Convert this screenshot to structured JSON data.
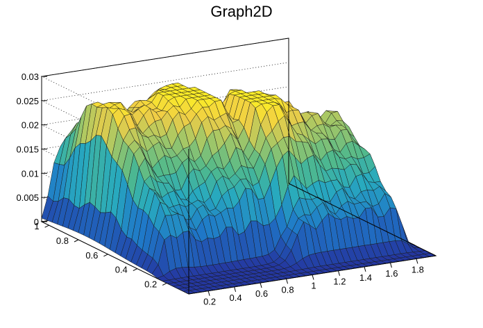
{
  "chart_data": {
    "type": "surface",
    "title": "Graph2D",
    "xlabel": "",
    "ylabel": "",
    "zlabel": "",
    "x_ticks": [
      "0.2",
      "0.4",
      "0.6",
      "0.8",
      "1",
      "1.2",
      "1.4",
      "1.6",
      "1.8"
    ],
    "y_ticks": [
      "0.2",
      "0.4",
      "0.6",
      "0.8",
      "1"
    ],
    "z_ticks": [
      "0",
      "0.005",
      "0.01",
      "0.015",
      "0.02",
      "0.025",
      "0.03"
    ],
    "x_range": [
      0.05,
      1.95
    ],
    "y_range": [
      0.05,
      1.05
    ],
    "z_range": [
      0,
      0.03
    ],
    "grid": true,
    "colormap": "viridis-like (blue-green-yellow)",
    "description_values": {
      "left_band_peak_z": 0.027,
      "right_band_peak_z": 0.024,
      "center_ridge_z": 0.019,
      "floor_z": 0
    }
  }
}
